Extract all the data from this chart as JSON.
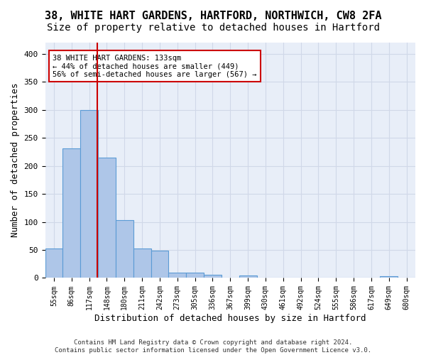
{
  "title1": "38, WHITE HART GARDENS, HARTFORD, NORTHWICH, CW8 2FA",
  "title2": "Size of property relative to detached houses in Hartford",
  "xlabel": "Distribution of detached houses by size in Hartford",
  "ylabel": "Number of detached properties",
  "bin_labels": [
    "55sqm",
    "86sqm",
    "117sqm",
    "148sqm",
    "180sqm",
    "211sqm",
    "242sqm",
    "273sqm",
    "305sqm",
    "336sqm",
    "367sqm",
    "399sqm",
    "430sqm",
    "461sqm",
    "492sqm",
    "524sqm",
    "555sqm",
    "586sqm",
    "617sqm",
    "649sqm",
    "680sqm"
  ],
  "bar_values": [
    53,
    231,
    300,
    215,
    103,
    53,
    49,
    10,
    9,
    6,
    0,
    5,
    0,
    0,
    0,
    0,
    0,
    0,
    0,
    3,
    0
  ],
  "bar_color": "#aec6e8",
  "bar_edge_color": "#5b9bd5",
  "vline_x": 2.44,
  "vline_color": "#cc0000",
  "annotation_text": "38 WHITE HART GARDENS: 133sqm\n← 44% of detached houses are smaller (449)\n56% of semi-detached houses are larger (567) →",
  "annotation_box_color": "#ffffff",
  "annotation_box_edge": "#cc0000",
  "grid_color": "#d0d8e8",
  "plot_bg": "#e8eef8",
  "ylim": [
    0,
    420
  ],
  "yticks": [
    0,
    50,
    100,
    150,
    200,
    250,
    300,
    350,
    400
  ],
  "footer": "Contains HM Land Registry data © Crown copyright and database right 2024.\nContains public sector information licensed under the Open Government Licence v3.0.",
  "title1_fontsize": 11,
  "title2_fontsize": 10,
  "xlabel_fontsize": 9,
  "ylabel_fontsize": 9
}
